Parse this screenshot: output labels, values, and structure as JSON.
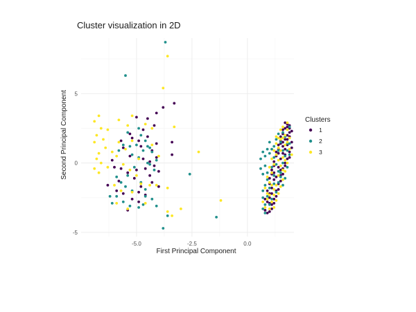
{
  "chart_data": {
    "type": "scatter",
    "title": "Cluster visualization in 2D",
    "xlabel": "First Principal Component",
    "ylabel": "Second Principal Component",
    "xlim": [
      -7.5,
      2.1
    ],
    "ylim": [
      -5.3,
      9.0
    ],
    "x_ticks": [
      -5.0,
      -2.5,
      0.0
    ],
    "x_tick_labels": [
      "-5.0",
      "-2.5",
      "0.0"
    ],
    "y_ticks": [
      -5,
      0,
      5
    ],
    "y_tick_labels": [
      "-5",
      "0",
      "5"
    ],
    "grid": true,
    "legend": {
      "title": "Clusters",
      "position": "right"
    },
    "series": [
      {
        "name": "1",
        "color": "#440154",
        "points": [
          [
            -5.6,
            1.1
          ],
          [
            -5.3,
            2.1
          ],
          [
            -5.2,
            1.8
          ],
          [
            -4.9,
            1.6
          ],
          [
            -4.8,
            1.2
          ],
          [
            -4.3,
            0.9
          ],
          [
            -4.2,
            2.7
          ],
          [
            -4.1,
            1.4
          ],
          [
            -4.7,
            0.3
          ],
          [
            -4.4,
            0.1
          ],
          [
            -4.6,
            -0.4
          ],
          [
            -4.2,
            -0.2
          ],
          [
            -4.3,
            -1.4
          ],
          [
            -4.8,
            -1.7
          ],
          [
            -5.1,
            -1.1
          ],
          [
            -5.4,
            -0.7
          ],
          [
            -5.7,
            -0.4
          ],
          [
            -6.0,
            -0.3
          ],
          [
            -5.8,
            -1.3
          ],
          [
            -5.6,
            -2.2
          ],
          [
            -5.2,
            -2.6
          ],
          [
            -4.9,
            -2.8
          ],
          [
            -5.9,
            -2.0
          ],
          [
            -6.1,
            0.2
          ],
          [
            -6.3,
            -1.6
          ],
          [
            -5.0,
            3.3
          ],
          [
            -4.5,
            3.2
          ],
          [
            -4.1,
            3.6
          ],
          [
            -3.8,
            4.0
          ],
          [
            -3.3,
            4.3
          ],
          [
            -3.4,
            1.5
          ],
          [
            -3.4,
            0.6
          ],
          [
            -4.0,
            -1.7
          ],
          [
            -4.6,
            -2.3
          ],
          [
            -5.4,
            -3.4
          ],
          [
            -4.9,
            -2.1
          ],
          [
            -4.4,
            -0.9
          ],
          [
            -4.0,
            -0.6
          ],
          [
            -5.3,
            0.5
          ],
          [
            -5.7,
            1.6
          ],
          [
            -4.5,
            1.9
          ],
          [
            -4.7,
            2.4
          ],
          [
            -5.0,
            -0.5
          ],
          [
            -4.1,
            0.4
          ],
          [
            0.9,
            -2.8
          ],
          [
            1.0,
            -2.2
          ],
          [
            1.0,
            -1.5
          ],
          [
            1.1,
            -0.8
          ],
          [
            1.2,
            -0.2
          ],
          [
            1.3,
            0.5
          ],
          [
            1.4,
            1.0
          ],
          [
            1.5,
            1.6
          ],
          [
            1.6,
            2.1
          ],
          [
            1.7,
            2.5
          ],
          [
            1.8,
            2.8
          ],
          [
            1.9,
            2.2
          ],
          [
            2.0,
            1.5
          ],
          [
            1.9,
            0.8
          ],
          [
            1.8,
            0.3
          ],
          [
            1.7,
            -0.2
          ],
          [
            1.6,
            -0.8
          ],
          [
            1.5,
            -1.3
          ],
          [
            1.4,
            -1.9
          ],
          [
            1.3,
            -2.4
          ],
          [
            1.2,
            -2.9
          ],
          [
            1.1,
            -3.3
          ],
          [
            1.0,
            -3.5
          ],
          [
            0.8,
            -3.4
          ],
          [
            0.8,
            -2.6
          ],
          [
            0.9,
            -2.0
          ],
          [
            1.0,
            -1.1
          ],
          [
            1.1,
            -0.5
          ],
          [
            1.2,
            0.1
          ],
          [
            1.3,
            0.8
          ],
          [
            1.4,
            1.3
          ],
          [
            1.5,
            1.9
          ],
          [
            1.6,
            2.4
          ],
          [
            1.7,
            2.9
          ],
          [
            1.8,
            2.6
          ],
          [
            1.9,
            1.9
          ],
          [
            2.0,
            1.1
          ],
          [
            1.9,
            0.4
          ],
          [
            1.7,
            0.0
          ],
          [
            1.6,
            -0.4
          ],
          [
            1.5,
            -0.9
          ],
          [
            1.4,
            -1.5
          ],
          [
            1.3,
            -2.0
          ],
          [
            1.2,
            -2.6
          ],
          [
            1.1,
            -3.0
          ],
          [
            1.0,
            -2.9
          ],
          [
            1.6,
            1.2
          ],
          [
            1.7,
            1.7
          ],
          [
            1.8,
            2.0
          ],
          [
            1.5,
            0.3
          ],
          [
            1.4,
            -0.3
          ],
          [
            1.2,
            -1.2
          ],
          [
            1.1,
            -1.8
          ],
          [
            1.3,
            -1.0
          ],
          [
            1.6,
            0.7
          ],
          [
            1.8,
            1.3
          ],
          [
            1.9,
            2.7
          ],
          [
            2.0,
            2.3
          ],
          [
            1.7,
            1.0
          ],
          [
            1.5,
            -0.5
          ],
          [
            0.9,
            -3.6
          ],
          [
            1.8,
            1.7
          ],
          [
            1.6,
            1.5
          ],
          [
            1.4,
            0.7
          ],
          [
            1.2,
            -0.7
          ],
          [
            1.1,
            -2.2
          ],
          [
            1.0,
            -2.5
          ],
          [
            1.9,
            2.5
          ],
          [
            1.7,
            0.6
          ],
          [
            1.5,
            1.4
          ]
        ]
      },
      {
        "name": "2",
        "color": "#21908C",
        "points": [
          [
            -3.7,
            8.7
          ],
          [
            -5.5,
            6.3
          ],
          [
            -5.4,
            2.2
          ],
          [
            -5.6,
            1.3
          ],
          [
            -5.3,
            1.2
          ],
          [
            -5.8,
            0.9
          ],
          [
            -4.8,
            2.0
          ],
          [
            -4.6,
            1.6
          ],
          [
            -4.5,
            1.2
          ],
          [
            -4.9,
            0.4
          ],
          [
            -4.4,
            1.1
          ],
          [
            -4.3,
            0.8
          ],
          [
            -4.5,
            0.0
          ],
          [
            -4.2,
            -0.5
          ],
          [
            -4.8,
            -1.4
          ],
          [
            -4.6,
            -1.9
          ],
          [
            -5.1,
            -0.3
          ],
          [
            -5.4,
            -0.9
          ],
          [
            -5.7,
            -1.4
          ],
          [
            -5.9,
            -2.4
          ],
          [
            -6.2,
            -2.4
          ],
          [
            -6.1,
            -2.9
          ],
          [
            -5.6,
            -2.8
          ],
          [
            -5.3,
            -3.1
          ],
          [
            -4.9,
            -3.2
          ],
          [
            -4.1,
            -3.1
          ],
          [
            -3.6,
            -3.8
          ],
          [
            -3.8,
            -4.7
          ],
          [
            -2.6,
            -0.8
          ],
          [
            -4.7,
            -3.0
          ],
          [
            -1.4,
            -3.9
          ],
          [
            -4.3,
            -2.6
          ],
          [
            -4.6,
            -2.4
          ],
          [
            -5.2,
            -2.0
          ],
          [
            -5.5,
            -1.7
          ],
          [
            -4.4,
            -0.1
          ],
          [
            -4.1,
            0.2
          ],
          [
            -5.0,
            1.3
          ],
          [
            -5.2,
            0.6
          ],
          [
            -4.7,
            0.9
          ],
          [
            -5.9,
            -1.0
          ],
          [
            -4.9,
            2.5
          ],
          [
            0.7,
            -3.3
          ],
          [
            0.8,
            -3.6
          ],
          [
            0.8,
            -3.0
          ],
          [
            0.7,
            -2.5
          ],
          [
            0.7,
            -2.0
          ],
          [
            0.8,
            -1.6
          ],
          [
            0.9,
            -1.2
          ],
          [
            0.7,
            -0.8
          ],
          [
            0.6,
            -0.4
          ],
          [
            0.6,
            0.3
          ],
          [
            0.7,
            0.8
          ],
          [
            0.8,
            0.5
          ],
          [
            1.0,
            1.5
          ],
          [
            1.1,
            1.0
          ],
          [
            1.2,
            0.4
          ],
          [
            1.3,
            -0.1
          ],
          [
            1.4,
            -0.6
          ],
          [
            1.5,
            -1.0
          ],
          [
            1.6,
            -1.6
          ],
          [
            1.7,
            -1.1
          ],
          [
            1.8,
            -0.3
          ],
          [
            1.9,
            0.6
          ],
          [
            1.8,
            1.4
          ],
          [
            1.7,
            1.9
          ],
          [
            1.9,
            2.6
          ],
          [
            1.6,
            2.2
          ],
          [
            1.5,
            1.5
          ],
          [
            1.4,
            0.9
          ],
          [
            1.2,
            1.2
          ],
          [
            1.0,
            0.7
          ],
          [
            1.1,
            -0.3
          ],
          [
            1.2,
            -0.9
          ],
          [
            1.0,
            -1.8
          ],
          [
            0.9,
            -2.4
          ],
          [
            1.0,
            -3.0
          ],
          [
            1.1,
            -2.6
          ],
          [
            1.3,
            -2.1
          ],
          [
            1.4,
            -1.4
          ],
          [
            1.5,
            -0.7
          ],
          [
            1.6,
            0.0
          ],
          [
            1.7,
            0.5
          ],
          [
            1.8,
            0.9
          ],
          [
            1.4,
            2.1
          ],
          [
            1.3,
            1.7
          ],
          [
            0.9,
            1.0
          ],
          [
            0.8,
            -0.2
          ],
          [
            0.9,
            -0.7
          ],
          [
            1.2,
            -1.5
          ],
          [
            1.6,
            0.9
          ],
          [
            1.9,
            1.4
          ]
        ]
      },
      {
        "name": "3",
        "color": "#FDE725",
        "points": [
          [
            -3.6,
            7.7
          ],
          [
            -3.8,
            5.4
          ],
          [
            -3.3,
            2.6
          ],
          [
            -2.2,
            0.8
          ],
          [
            -4.3,
            2.5
          ],
          [
            -4.6,
            2.8
          ],
          [
            -5.8,
            3.1
          ],
          [
            -5.2,
            3.4
          ],
          [
            -6.7,
            3.4
          ],
          [
            -6.9,
            3.0
          ],
          [
            -6.6,
            2.5
          ],
          [
            -6.3,
            2.4
          ],
          [
            -6.8,
            2.0
          ],
          [
            -6.5,
            1.7
          ],
          [
            -6.9,
            1.5
          ],
          [
            -6.4,
            1.1
          ],
          [
            -6.7,
            0.7
          ],
          [
            -6.8,
            0.3
          ],
          [
            -6.6,
            0.0
          ],
          [
            -6.9,
            -0.4
          ],
          [
            -6.7,
            -0.7
          ],
          [
            -6.3,
            -0.3
          ],
          [
            -5.8,
            1.5
          ],
          [
            -5.5,
            1.0
          ],
          [
            -5.9,
            0.5
          ],
          [
            -5.6,
            -0.1
          ],
          [
            -5.3,
            -0.5
          ],
          [
            -5.0,
            -0.9
          ],
          [
            -4.8,
            -1.5
          ],
          [
            -4.4,
            -1.6
          ],
          [
            -4.1,
            -1.6
          ],
          [
            -3.6,
            -1.8
          ],
          [
            -3.6,
            -3.5
          ],
          [
            -3.4,
            -3.8
          ],
          [
            -3.0,
            -3.3
          ],
          [
            -5.2,
            -2.1
          ],
          [
            -5.7,
            -2.0
          ],
          [
            -6.0,
            -1.6
          ],
          [
            -5.9,
            -2.9
          ],
          [
            -5.4,
            -3.3
          ],
          [
            -4.6,
            -2.9
          ],
          [
            -1.2,
            -2.7
          ],
          [
            -4.9,
            0.3
          ],
          [
            -5.2,
            1.6
          ],
          [
            -4.3,
            1.3
          ],
          [
            -4.0,
            0.5
          ],
          [
            -5.4,
            2.7
          ],
          [
            -6.1,
            0.8
          ],
          [
            0.8,
            -1.8
          ],
          [
            0.9,
            -1.0
          ],
          [
            1.0,
            -0.3
          ],
          [
            1.1,
            0.3
          ],
          [
            1.2,
            0.9
          ],
          [
            1.3,
            1.4
          ],
          [
            1.4,
            1.8
          ],
          [
            1.5,
            2.4
          ],
          [
            1.7,
            2.0
          ],
          [
            1.8,
            1.5
          ],
          [
            1.9,
            1.0
          ],
          [
            2.0,
            0.6
          ],
          [
            1.8,
            0.0
          ],
          [
            1.7,
            -0.6
          ],
          [
            1.6,
            -1.2
          ],
          [
            1.5,
            -1.7
          ],
          [
            1.4,
            -2.2
          ],
          [
            1.3,
            -2.7
          ],
          [
            1.2,
            -3.2
          ],
          [
            1.0,
            -3.3
          ],
          [
            0.8,
            -3.2
          ],
          [
            0.7,
            -2.8
          ],
          [
            0.9,
            -2.2
          ],
          [
            1.0,
            -1.4
          ],
          [
            1.1,
            -0.7
          ],
          [
            1.2,
            -0.1
          ],
          [
            1.3,
            0.6
          ],
          [
            1.4,
            1.1
          ],
          [
            1.5,
            1.7
          ],
          [
            1.6,
            2.6
          ],
          [
            1.8,
            2.4
          ],
          [
            1.9,
            1.8
          ],
          [
            1.7,
            1.3
          ],
          [
            1.6,
            0.4
          ],
          [
            1.5,
            -0.2
          ],
          [
            1.4,
            -0.9
          ],
          [
            1.3,
            -1.6
          ],
          [
            1.2,
            -2.3
          ],
          [
            1.1,
            -2.8
          ],
          [
            1.5,
            0.9
          ],
          [
            1.7,
            0.2
          ],
          [
            1.1,
            -1.6
          ],
          [
            0.9,
            -2.6
          ],
          [
            1.3,
            1.9
          ],
          [
            1.6,
            -0.5
          ],
          [
            1.2,
            -1.9
          ],
          [
            1.0,
            -2.3
          ],
          [
            1.8,
            2.9
          ],
          [
            1.4,
            0.2
          ],
          [
            1.6,
            1.8
          ]
        ]
      }
    ]
  }
}
